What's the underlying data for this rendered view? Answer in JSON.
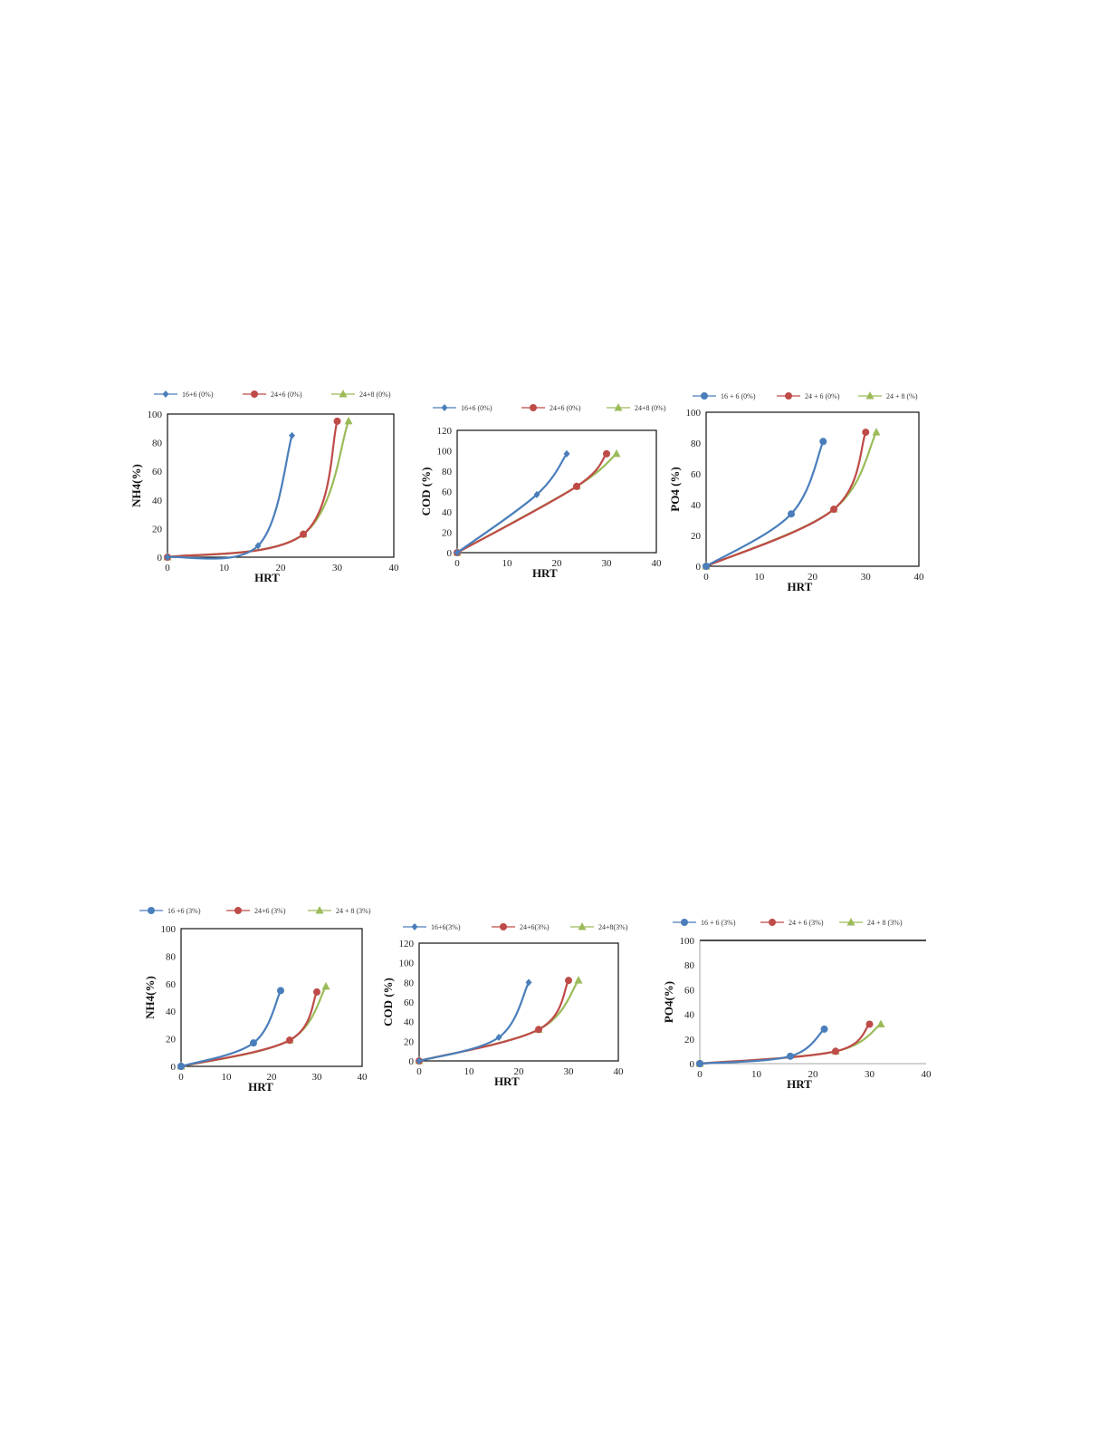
{
  "page": {
    "background": "#ffffff"
  },
  "series_colors": {
    "blue": "#4a7ebb",
    "red": "#be4b48",
    "green": "#9bbb59"
  },
  "chart_data": [
    {
      "type": "line",
      "ylabel": "NH4(%)",
      "xlabel": "HRT",
      "xlim": [
        0,
        40
      ],
      "ylim": [
        0,
        100
      ],
      "xticks": [
        "0",
        "10",
        "20",
        "30",
        "40"
      ],
      "yticks": [
        "0",
        "20",
        "40",
        "60",
        "80",
        "100"
      ],
      "grid": false,
      "legend": "top",
      "series": [
        {
          "name": "16+6 (0%)",
          "color": "#4a7ebb",
          "marker": "diamond",
          "points": [
            [
              0,
              0
            ],
            [
              16,
              8
            ],
            [
              22,
              85
            ]
          ]
        },
        {
          "name": "24+6 (0%)",
          "color": "#be4b48",
          "marker": "circle",
          "points": [
            [
              0,
              0
            ],
            [
              24,
              16
            ],
            [
              30,
              95
            ]
          ]
        },
        {
          "name": "24+8 (0%)",
          "color": "#9bbb59",
          "marker": "triangle",
          "points": [
            [
              0,
              0
            ],
            [
              24,
              16
            ],
            [
              32,
              95
            ]
          ]
        }
      ]
    },
    {
      "type": "line",
      "ylabel": "COD (%)",
      "xlabel": "HRT",
      "xlim": [
        0,
        40
      ],
      "ylim": [
        0,
        120
      ],
      "xticks": [
        "0",
        "10",
        "20",
        "30",
        "40"
      ],
      "yticks": [
        "0",
        "20",
        "40",
        "60",
        "80",
        "100",
        "120"
      ],
      "grid": false,
      "legend": "top",
      "series": [
        {
          "name": "16+6 (0%)",
          "color": "#4a7ebb",
          "marker": "diamond",
          "points": [
            [
              0,
              0
            ],
            [
              16,
              57
            ],
            [
              22,
              97
            ]
          ]
        },
        {
          "name": "24+6 (0%)",
          "color": "#be4b48",
          "marker": "circle",
          "points": [
            [
              0,
              0
            ],
            [
              24,
              65
            ],
            [
              30,
              97
            ]
          ]
        },
        {
          "name": "24+8 (0%)",
          "color": "#9bbb59",
          "marker": "triangle",
          "points": [
            [
              0,
              0
            ],
            [
              24,
              65
            ],
            [
              32,
              97
            ]
          ]
        }
      ]
    },
    {
      "type": "line",
      "ylabel": "PO4 (%)",
      "xlabel": "HRT",
      "xlim": [
        0,
        40
      ],
      "ylim": [
        0,
        100
      ],
      "xticks": [
        "0",
        "10",
        "20",
        "30",
        "40"
      ],
      "yticks": [
        "0",
        "20",
        "40",
        "60",
        "80",
        "100"
      ],
      "grid": false,
      "legend": "top",
      "series": [
        {
          "name": "16 + 6 (0%)",
          "color": "#4a7ebb",
          "marker": "circle",
          "points": [
            [
              0,
              0
            ],
            [
              16,
              34
            ],
            [
              22,
              81
            ]
          ]
        },
        {
          "name": "24 + 6 (0%)",
          "color": "#be4b48",
          "marker": "circle",
          "points": [
            [
              0,
              0
            ],
            [
              24,
              37
            ],
            [
              30,
              87
            ]
          ]
        },
        {
          "name": "24 + 8 (%)",
          "color": "#9bbb59",
          "marker": "triangle",
          "points": [
            [
              0,
              0
            ],
            [
              24,
              37
            ],
            [
              32,
              87
            ]
          ]
        }
      ]
    },
    {
      "type": "line",
      "ylabel": "NH4(%)",
      "xlabel": "HRT",
      "xlim": [
        0,
        40
      ],
      "ylim": [
        0,
        100
      ],
      "xticks": [
        "0",
        "10",
        "20",
        "30",
        "40"
      ],
      "yticks": [
        "0",
        "20",
        "40",
        "60",
        "80",
        "100"
      ],
      "grid": false,
      "legend": "top",
      "series": [
        {
          "name": "16 +6 (3%)",
          "color": "#4a7ebb",
          "marker": "circle",
          "points": [
            [
              0,
              0
            ],
            [
              16,
              17
            ],
            [
              22,
              55
            ]
          ]
        },
        {
          "name": "24+6 (3%)",
          "color": "#be4b48",
          "marker": "circle",
          "points": [
            [
              0,
              0
            ],
            [
              24,
              19
            ],
            [
              30,
              54
            ]
          ]
        },
        {
          "name": "24 + 8 (3%)",
          "color": "#9bbb59",
          "marker": "triangle",
          "points": [
            [
              0,
              0
            ],
            [
              24,
              19
            ],
            [
              32,
              58
            ]
          ]
        }
      ]
    },
    {
      "type": "line",
      "ylabel": "COD (%)",
      "xlabel": "HRT",
      "xlim": [
        0,
        40
      ],
      "ylim": [
        0,
        120
      ],
      "xticks": [
        "0",
        "10",
        "20",
        "30",
        "40"
      ],
      "yticks": [
        "0",
        "20",
        "40",
        "60",
        "80",
        "100",
        "120"
      ],
      "grid": false,
      "legend": "top",
      "series": [
        {
          "name": "16+6(3%)",
          "color": "#4a7ebb",
          "marker": "diamond",
          "points": [
            [
              0,
              0
            ],
            [
              16,
              24
            ],
            [
              22,
              80
            ]
          ]
        },
        {
          "name": "24+6(3%)",
          "color": "#be4b48",
          "marker": "circle",
          "points": [
            [
              0,
              0
            ],
            [
              24,
              32
            ],
            [
              30,
              82
            ]
          ]
        },
        {
          "name": "24+8(3%)",
          "color": "#9bbb59",
          "marker": "triangle",
          "points": [
            [
              0,
              0
            ],
            [
              24,
              32
            ],
            [
              32,
              82
            ]
          ]
        }
      ]
    },
    {
      "type": "line",
      "ylabel": "PO4(%)",
      "xlabel": "HRT",
      "xlim": [
        0,
        40
      ],
      "ylim": [
        0,
        100
      ],
      "xticks": [
        "0",
        "10",
        "20",
        "30",
        "40"
      ],
      "yticks": [
        "0",
        "20",
        "40",
        "60",
        "80",
        "100"
      ],
      "grid": false,
      "legend": "top",
      "series": [
        {
          "name": "16 + 6 (3%)",
          "color": "#4a7ebb",
          "marker": "circle",
          "points": [
            [
              0,
              0
            ],
            [
              16,
              6
            ],
            [
              22,
              28
            ]
          ]
        },
        {
          "name": "24 + 6 (3%)",
          "color": "#be4b48",
          "marker": "circle",
          "points": [
            [
              0,
              0
            ],
            [
              24,
              10
            ],
            [
              30,
              32
            ]
          ]
        },
        {
          "name": "24 + 8 (3%)",
          "color": "#9bbb59",
          "marker": "triangle",
          "points": [
            [
              0,
              0
            ],
            [
              24,
              10
            ],
            [
              32,
              32
            ]
          ]
        }
      ]
    }
  ]
}
